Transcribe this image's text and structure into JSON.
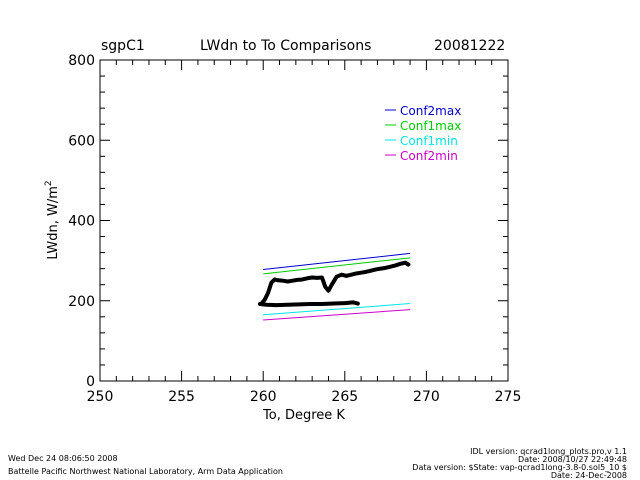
{
  "header": {
    "site": "sgpC1",
    "title": "LWdn to To Comparisons",
    "date": "20081222"
  },
  "footer": {
    "left_line1": "Wed Dec 24 08:06:50 2008",
    "left_line2": "Battelle Pacific Northwest National Laboratory, Arm Data Application",
    "right_line1": "IDL version: qcrad1long_plots.pro,v 1.1",
    "right_line2": "Date: 2008/10/27 22:49:48",
    "right_line3": "Data version: $State: vap-qcrad1long-3.8-0.sol5_10 $",
    "right_line4": "Date: 24-Dec-2008"
  },
  "chart_data": {
    "type": "line",
    "xlabel": "To, Degree K",
    "ylabel": "LWdn, W/m",
    "ylabel_sup": "2",
    "xlim": [
      250,
      275
    ],
    "ylim": [
      0,
      800
    ],
    "xticks": [
      250,
      255,
      260,
      265,
      270,
      275
    ],
    "yticks": [
      0,
      200,
      400,
      600,
      800
    ],
    "grid": false,
    "legend_position": "top-right",
    "series": [
      {
        "name": "Conf2max",
        "color": "#0000cc",
        "x": [
          260,
          269
        ],
        "y": [
          278,
          318
        ]
      },
      {
        "name": "Conf1max",
        "color": "#00cc00",
        "x": [
          260,
          269
        ],
        "y": [
          267,
          307
        ]
      },
      {
        "name": "Conf1min",
        "color": "#00e5e5",
        "x": [
          260,
          269
        ],
        "y": [
          165,
          193
        ]
      },
      {
        "name": "Conf2min",
        "color": "#cc00cc",
        "x": [
          260,
          269
        ],
        "y": [
          152,
          178
        ]
      }
    ],
    "observed": {
      "color": "#000000",
      "upper": {
        "x": [
          259.9,
          260.1,
          260.3,
          260.5,
          260.7,
          260.9,
          261.2,
          261.5,
          261.8,
          262.1,
          262.4,
          262.7,
          263.0,
          263.3,
          263.6,
          263.8,
          264.0,
          264.2,
          264.5,
          264.8,
          265.1,
          265.4,
          265.7,
          266.0,
          266.3,
          266.6,
          266.9,
          267.2,
          267.5,
          267.8,
          268.1,
          268.4,
          268.7,
          268.9
        ],
        "y": [
          193,
          203,
          220,
          245,
          253,
          251,
          250,
          248,
          250,
          252,
          253,
          256,
          258,
          257,
          258,
          235,
          225,
          240,
          260,
          265,
          262,
          265,
          268,
          270,
          272,
          275,
          278,
          280,
          282,
          285,
          288,
          292,
          295,
          290
        ]
      },
      "lower": {
        "x": [
          259.8,
          260.2,
          260.8,
          261.5,
          262.2,
          262.9,
          263.6,
          264.3,
          265.0,
          265.5,
          265.8
        ],
        "y": [
          192,
          190,
          189,
          190,
          191,
          192,
          192,
          193,
          194,
          196,
          193
        ]
      }
    }
  }
}
